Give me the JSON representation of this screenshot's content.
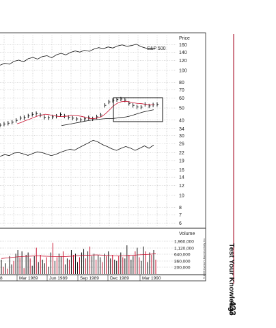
{
  "page": {
    "running_head": "Test Your Knowledge",
    "page_number": "433",
    "copyright": "© 2009 Investor's Business Daily, Inc.",
    "accent_color": "#b0263d"
  },
  "chart_data": [
    {
      "type": "line",
      "panel": "price",
      "ylabel": "Price",
      "y_scale": "log",
      "ylim": [
        5.6,
        190
      ],
      "y_ticks": [
        160,
        140,
        120,
        100,
        80,
        70,
        60,
        50,
        40,
        34,
        30,
        26,
        22,
        19,
        16,
        14,
        12,
        10,
        8,
        7,
        6
      ],
      "x_ticks": [
        "8",
        "Mar 1989",
        "Jun 1989",
        "Sep 1989",
        "Dec 1989",
        "Mar 1990"
      ],
      "grid": true,
      "series": [
        {
          "name": "S&P 500",
          "style": "line",
          "color": "#111111",
          "values": [
            110,
            114,
            112,
            118,
            121,
            117,
            124,
            127,
            123,
            129,
            131,
            126,
            133,
            137,
            133,
            139,
            143,
            140,
            145,
            142,
            148,
            152,
            149,
            154,
            151,
            157,
            160,
            156,
            158,
            162,
            155,
            151,
            149,
            151
          ]
        },
        {
          "style": "line",
          "color": "#111111",
          "values": [
            20.5,
            21.2,
            20.8,
            21.8,
            22.0,
            21.5,
            20.9,
            21.6,
            22.3,
            22.0,
            21.4,
            20.8,
            21.3,
            22.1,
            22.8,
            23.4,
            23.0,
            24.1,
            25.2,
            26.3,
            27.6,
            26.8,
            25.5,
            24.6,
            23.6,
            22.9,
            23.8,
            24.6,
            23.9,
            22.9,
            23.8,
            24.9,
            23.8,
            25.3
          ]
        },
        {
          "style": "ohlc",
          "color": "#111111",
          "values": [
            36.5,
            37.2,
            37.8,
            38.5,
            39.8,
            41.5,
            42.0,
            43.2,
            44.5,
            45.1,
            44.0,
            42.2,
            41.8,
            42.5,
            43.0,
            44.3,
            43.1,
            42.2,
            41.5,
            40.9,
            40.2,
            41.0,
            41.8,
            41.0,
            42.5,
            44.0,
            52.5,
            56.0,
            57.5,
            58.5,
            59.0,
            58.0,
            54.5,
            52.5,
            51.0,
            50.8,
            53.5,
            52.0,
            53.0,
            53.5
          ]
        },
        {
          "style": "line",
          "color": "#c8102e",
          "values": [
            37.4,
            38.3,
            39.6,
            40.5,
            41.8,
            43.0,
            43.8,
            44.6,
            44.2,
            43.5,
            42.9,
            42.7,
            42.9,
            43.2,
            43.6,
            43.4,
            42.9,
            42.1,
            41.3,
            41.1,
            41.6,
            42.6,
            45.0,
            48.3,
            52.1,
            54.7,
            56.2,
            56.6,
            56.0,
            55.0,
            54.4,
            54.2,
            53.5,
            52.9,
            53.0
          ]
        },
        {
          "style": "line",
          "color": "#111111",
          "values": [
            36.2,
            36.6,
            37.0,
            37.4,
            37.9,
            38.3,
            38.8,
            39.3,
            39.7,
            40.1,
            40.4,
            40.6,
            40.9,
            41.1,
            41.2,
            41.3,
            41.5,
            41.8,
            42.1,
            42.5,
            43.1,
            43.9,
            44.8,
            45.7,
            46.5,
            47.2,
            47.8,
            48.4
          ]
        }
      ],
      "annotations": [
        "S&P 500"
      ]
    },
    {
      "type": "bar",
      "panel": "volume",
      "ylabel": "Volume",
      "ylim": [
        0,
        2800000
      ],
      "y_ticks": [
        "1,960,000",
        "1,120,000",
        "640,000",
        "360,000",
        "200,000"
      ],
      "series": [
        {
          "style": "bar",
          "values": [
            1200000,
            600000,
            900000,
            450000,
            1500000,
            800000,
            1100000,
            1700000,
            2000000,
            1400000,
            1900000,
            500000,
            1600000,
            1800000,
            1300000,
            700000,
            1500000,
            2200000,
            1000000,
            1600000,
            1200000,
            900000,
            1400000,
            600000,
            1800000,
            2600000,
            1100000,
            1400000,
            1700000,
            1500000,
            1900000,
            800000,
            1300000,
            1200000,
            2000000,
            1600000,
            1700000,
            1000000,
            1400000,
            1800000,
            2100000,
            1300000,
            1900000,
            2300000,
            1500000,
            1700000,
            1200000,
            1600000,
            1400000,
            1000000,
            1700000,
            1500000,
            1900000,
            1300000,
            1600000,
            1200000,
            1100000,
            1500000,
            1800000,
            1400000,
            1300000,
            2400000,
            1600000,
            1200000,
            1500000,
            1900000,
            2200000,
            1400000,
            1100000,
            2300000,
            1900000,
            1000000,
            1800000,
            1600000,
            2000000,
            1200000
          ],
          "colors_pattern": [
            "#111111",
            "#c8102e",
            "#111111",
            "#c8102e",
            "#111111",
            "#111111",
            "#c8102e",
            "#111111"
          ]
        },
        {
          "style": "line",
          "color": "#c8102e",
          "values": [
            1300000,
            1350000,
            1400000,
            1450000,
            1480000,
            1500000,
            1520000,
            1500000,
            1480000,
            1460000,
            1450000,
            1470000,
            1500000,
            1530000,
            1560000,
            1580000,
            1600000,
            1580000,
            1550000,
            1520000,
            1510000,
            1530000,
            1560000,
            1600000,
            1620000,
            1650000,
            1700000
          ]
        }
      ]
    }
  ]
}
